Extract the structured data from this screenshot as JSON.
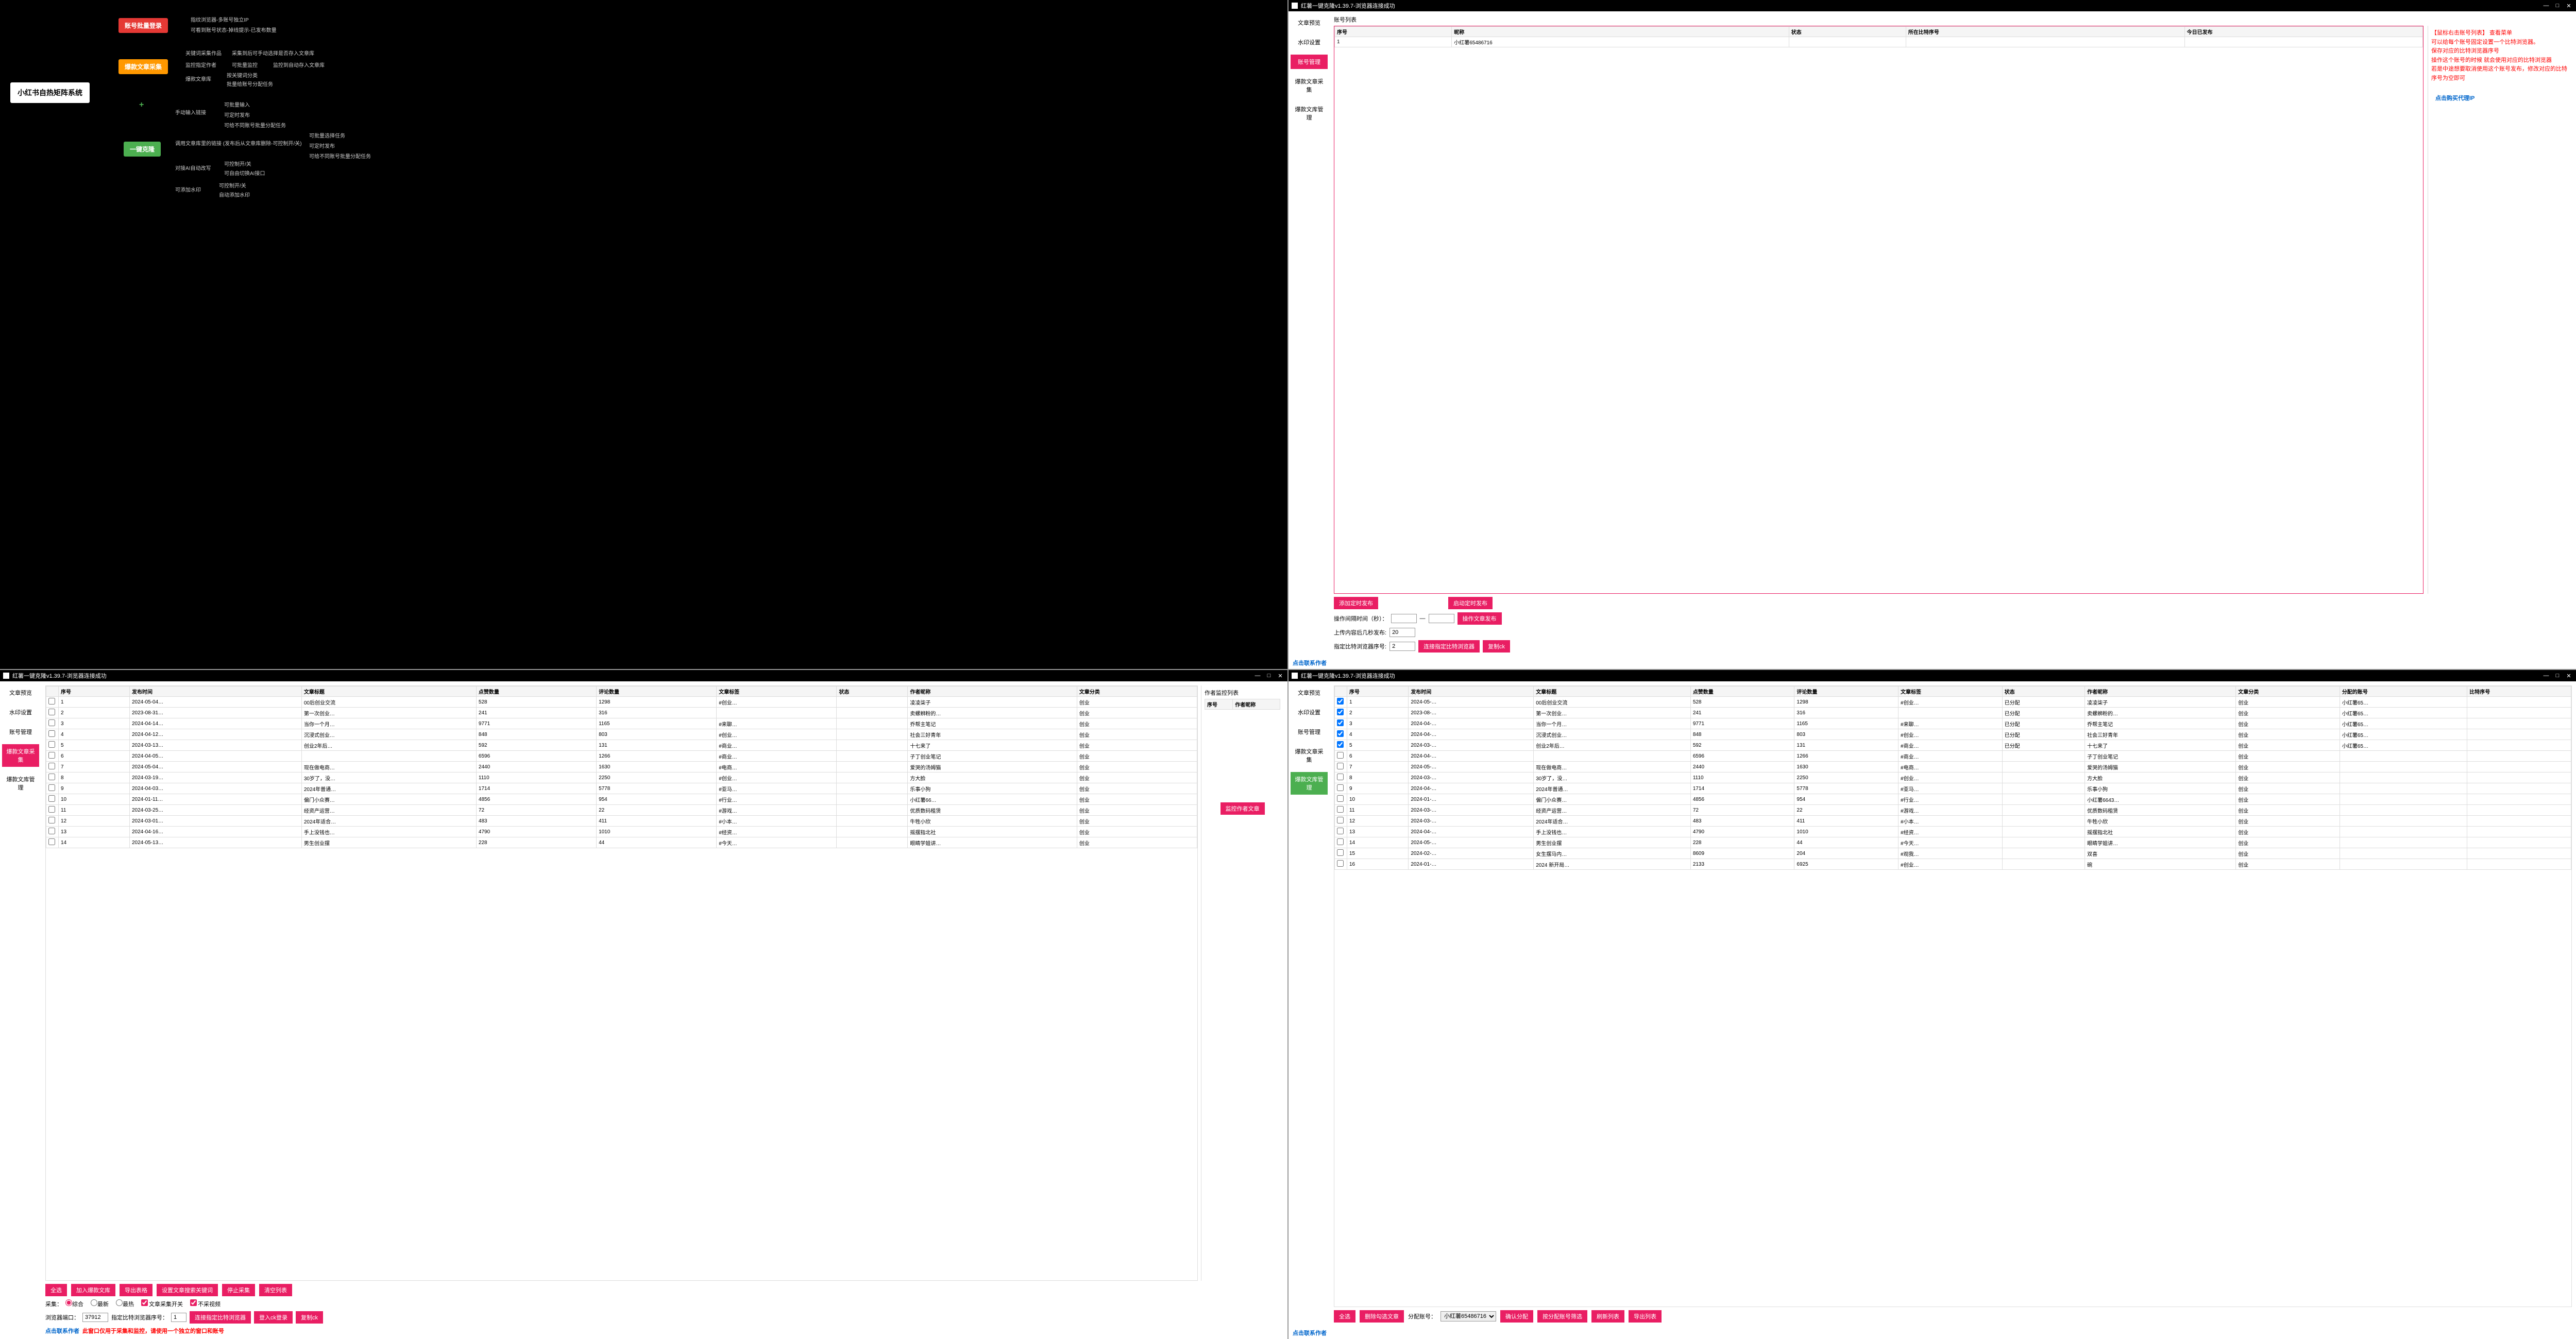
{
  "title": "红薯一键克隆v1.39.7-浏览器连接成功",
  "win": {
    "min": "—",
    "max": "□",
    "close": "✕"
  },
  "sidebar": {
    "items": [
      "文章预览",
      "水印设置",
      "账号管理",
      "爆款文章采集",
      "爆款文库管理"
    ]
  },
  "contact": "点击联系作者",
  "mindmap": {
    "root": "小红书自热矩阵系统",
    "n1": "账号批量登录",
    "n1a": "指纹浏览器-多账号独立IP",
    "n1b": "可看到账号状态-掉线提示-已发布数量",
    "n2": "爆款文章采集",
    "n2a": "关键词采集作品",
    "n2a1": "采集到后可手动选择是否存入文章库",
    "n2b": "监控指定作者",
    "n2b1": "可批量监控",
    "n2b2": "监控到自动存入文章库",
    "n2c": "爆款文章库",
    "n2c1": "按关键词分类",
    "n2c2": "批量给账号分配任务",
    "n3": "一键克隆",
    "n3a": "手动输入链接",
    "n3a1": "可批量输入",
    "n3a2": "可定时发布",
    "n3a3": "可给不同账号批量分配任务",
    "n3b": "调用文章库里的链接 (发布后从文章库删除-可控制开/关)",
    "n3b1": "可批量选择任务",
    "n3b2": "可定时发布",
    "n3b3": "可给不同账号批量分配任务",
    "n3c": "对接AI自动改写",
    "n3c1": "可控制开/关",
    "n3c2": "可自由切换AI接口",
    "n3d": "可添加水印",
    "n3d1": "可控制开/关",
    "n3d2": "自动添加水印"
  },
  "p2": {
    "table_title": "账号列表",
    "headers": [
      "序号",
      "昵称",
      "状态",
      "所在比特序号",
      "今日已发布"
    ],
    "row": [
      "1",
      "小红薯65486716",
      "",
      "",
      ""
    ],
    "info": [
      "【鼠标右击账号列表】  查看菜单",
      "可以给每个账号固定设置一个比特浏览器。",
      "保存对应的比特浏览器序号",
      "操作这个账号的时候 就会使用对应的比特浏览器",
      "若是中途想要取消使用这个账号发布，修改对应的比特序号为空即可"
    ],
    "proxy": "点击购买代理IP",
    "btns": {
      "add_timer": "添加定时发布",
      "start_timer": "启动定时发布",
      "op_publish": "操作文章发布",
      "connect": "连接指定比特浏览器",
      "copy": "复制ck"
    },
    "labels": {
      "interval": "操作间隔时间（秒）：",
      "dash": "—",
      "upload": "上传内容后几秒发布:",
      "upload_v": "20",
      "browser": "指定比特浏览器序号:",
      "browser_v": "2"
    }
  },
  "p3": {
    "headers": [
      "序号",
      "发布时间",
      "文章标题",
      "点赞数量",
      "评论数量",
      "文章标签",
      "状态",
      "作者昵称",
      "文章分类"
    ],
    "rows": [
      [
        "1",
        "2024-05-04…",
        "00后创业交流",
        "528",
        "1298",
        "#创业…",
        "",
        "凌凌柒子",
        "创业"
      ],
      [
        "2",
        "2023-08-31…",
        "第一次创业…",
        "241",
        "316",
        "",
        "",
        "卖螺蛳粉的…",
        "创业"
      ],
      [
        "3",
        "2024-04-14…",
        "当你一个月…",
        "9771",
        "1165",
        "#来聊…",
        "",
        "乔帮主笔记",
        "创业"
      ],
      [
        "4",
        "2024-04-12…",
        "沉浸式创业…",
        "848",
        "803",
        "#创业…",
        "",
        "社会三好青年",
        "创业"
      ],
      [
        "5",
        "2024-03-13…",
        "创业2年后…",
        "592",
        "131",
        "#商业…",
        "",
        "十七来了",
        "创业"
      ],
      [
        "6",
        "2024-04-05…",
        "",
        "6596",
        "1266",
        "#商业…",
        "",
        "子丁创业笔记",
        "创业"
      ],
      [
        "7",
        "2024-05-04…",
        "现在做电商…",
        "2440",
        "1630",
        "#电商…",
        "",
        "爱哭的汤姆猫",
        "创业"
      ],
      [
        "8",
        "2024-03-19…",
        "30岁了，没…",
        "1110",
        "2250",
        "#创业…",
        "",
        "方大脸",
        "创业"
      ],
      [
        "9",
        "2024-04-03…",
        "2024年普通…",
        "1714",
        "5778",
        "#亚马…",
        "",
        "乐事小狗",
        "创业"
      ],
      [
        "10",
        "2024-01-11…",
        "偏门小众赛…",
        "4856",
        "954",
        "#行业…",
        "",
        "小红薯66…",
        "创业"
      ],
      [
        "11",
        "2024-03-25…",
        "经资产运营…",
        "72",
        "22",
        "#游戏…",
        "",
        "优质数码租赁",
        "创业"
      ],
      [
        "12",
        "2024-03-01…",
        "2024年适合…",
        "483",
        "411",
        "#小本…",
        "",
        "牛牲小欣",
        "创业"
      ],
      [
        "13",
        "2024-04-16…",
        "手上没钱也…",
        "4790",
        "1010",
        "#经资…",
        "",
        "摇摆指北社",
        "创业"
      ],
      [
        "14",
        "2024-05-13…",
        "男生创业摆",
        "228",
        "44",
        "#今天…",
        "",
        "眼睛学姐讲…",
        "创业"
      ]
    ],
    "side_title": "作者监控列表",
    "side_headers": [
      "序号",
      "作者昵称"
    ],
    "btns": {
      "all": "全选",
      "add_lib": "加入爆款文库",
      "export": "导出表格",
      "set_kw": "设置文章搜索关键词",
      "stop": "停止采集",
      "clear": "清空列表",
      "monitor": "监控作者文章",
      "connect": "连接指定比特浏览器",
      "login": "登入ck登录",
      "copy": "复制ck"
    },
    "labels": {
      "collect": "采集：",
      "r1": "综合",
      "r2": "最新",
      "r3": "最热",
      "chk1": "文章采集开关",
      "chk2": "不采视频",
      "port": "浏览器端口：",
      "port_v": "37912",
      "browser": "指定比特浏览器序号：",
      "browser_v": "1"
    },
    "warn": "此窗口仅用于采集和监控，请使用一个独立的窗口和账号"
  },
  "p4": {
    "headers": [
      "序号",
      "发布时间",
      "文章标题",
      "点赞数量",
      "评论数量",
      "文章标签",
      "状态",
      "作者昵称",
      "文章分类",
      "分配的账号",
      "比特序号"
    ],
    "rows": [
      [
        "1",
        "2024-05-…",
        "00后创业交流",
        "528",
        "1298",
        "#创业…",
        "已分配",
        "凌凌柒子",
        "创业",
        "小红薯65…",
        ""
      ],
      [
        "2",
        "2023-08-…",
        "第一次创业…",
        "241",
        "316",
        "",
        "已分配",
        "卖螺蛳粉的…",
        "创业",
        "小红薯65…",
        ""
      ],
      [
        "3",
        "2024-04-…",
        "当你一个月…",
        "9771",
        "1165",
        "#来聊…",
        "已分配",
        "乔帮主笔记",
        "创业",
        "小红薯65…",
        ""
      ],
      [
        "4",
        "2024-04-…",
        "沉浸式创业…",
        "848",
        "803",
        "#创业…",
        "已分配",
        "社会三好青年",
        "创业",
        "小红薯65…",
        ""
      ],
      [
        "5",
        "2024-03-…",
        "创业2年后…",
        "592",
        "131",
        "#商业…",
        "已分配",
        "十七来了",
        "创业",
        "小红薯65…",
        ""
      ],
      [
        "6",
        "2024-04-…",
        "",
        "6596",
        "1266",
        "#商业…",
        "",
        "子丁创业笔记",
        "创业",
        "",
        ""
      ],
      [
        "7",
        "2024-05-…",
        "现在做电商…",
        "2440",
        "1630",
        "#电商…",
        "",
        "爱哭的汤姆猫",
        "创业",
        "",
        ""
      ],
      [
        "8",
        "2024-03-…",
        "30岁了，没…",
        "1110",
        "2250",
        "#创业…",
        "",
        "方大脸",
        "创业",
        "",
        ""
      ],
      [
        "9",
        "2024-04-…",
        "2024年普通…",
        "1714",
        "5778",
        "#亚马…",
        "",
        "乐事小狗",
        "创业",
        "",
        ""
      ],
      [
        "10",
        "2024-01-…",
        "偏门小众赛…",
        "4856",
        "954",
        "#行业…",
        "",
        "小红薯6643…",
        "创业",
        "",
        ""
      ],
      [
        "11",
        "2024-03-…",
        "经资产运营…",
        "72",
        "22",
        "#游戏…",
        "",
        "优质数码租赁",
        "创业",
        "",
        ""
      ],
      [
        "12",
        "2024-03-…",
        "2024年适合…",
        "483",
        "411",
        "#小本…",
        "",
        "牛牲小欣",
        "创业",
        "",
        ""
      ],
      [
        "13",
        "2024-04-…",
        "手上没钱也…",
        "4790",
        "1010",
        "#经资…",
        "",
        "摇摆指北社",
        "创业",
        "",
        ""
      ],
      [
        "14",
        "2024-05-…",
        "男生创业摆",
        "228",
        "44",
        "#今天…",
        "",
        "眼睛学姐讲…",
        "创业",
        "",
        ""
      ],
      [
        "15",
        "2024-02-…",
        "女生摆马内…",
        "8609",
        "204",
        "#观我…",
        "",
        "双喜",
        "创业",
        "",
        ""
      ],
      [
        "16",
        "2024-01-…",
        "2024 新开局…",
        "2133",
        "6925",
        "#创业…",
        "",
        "碗",
        "创业",
        "",
        ""
      ]
    ],
    "btns": {
      "all": "全选",
      "del": "删除勾选文章",
      "confirm": "确认分配",
      "filter": "按分配账号筛选",
      "refresh": "刷新列表",
      "export": "导出列表"
    },
    "labels": {
      "assign": "分配账号：",
      "assign_v": "小红薯65486716"
    }
  }
}
